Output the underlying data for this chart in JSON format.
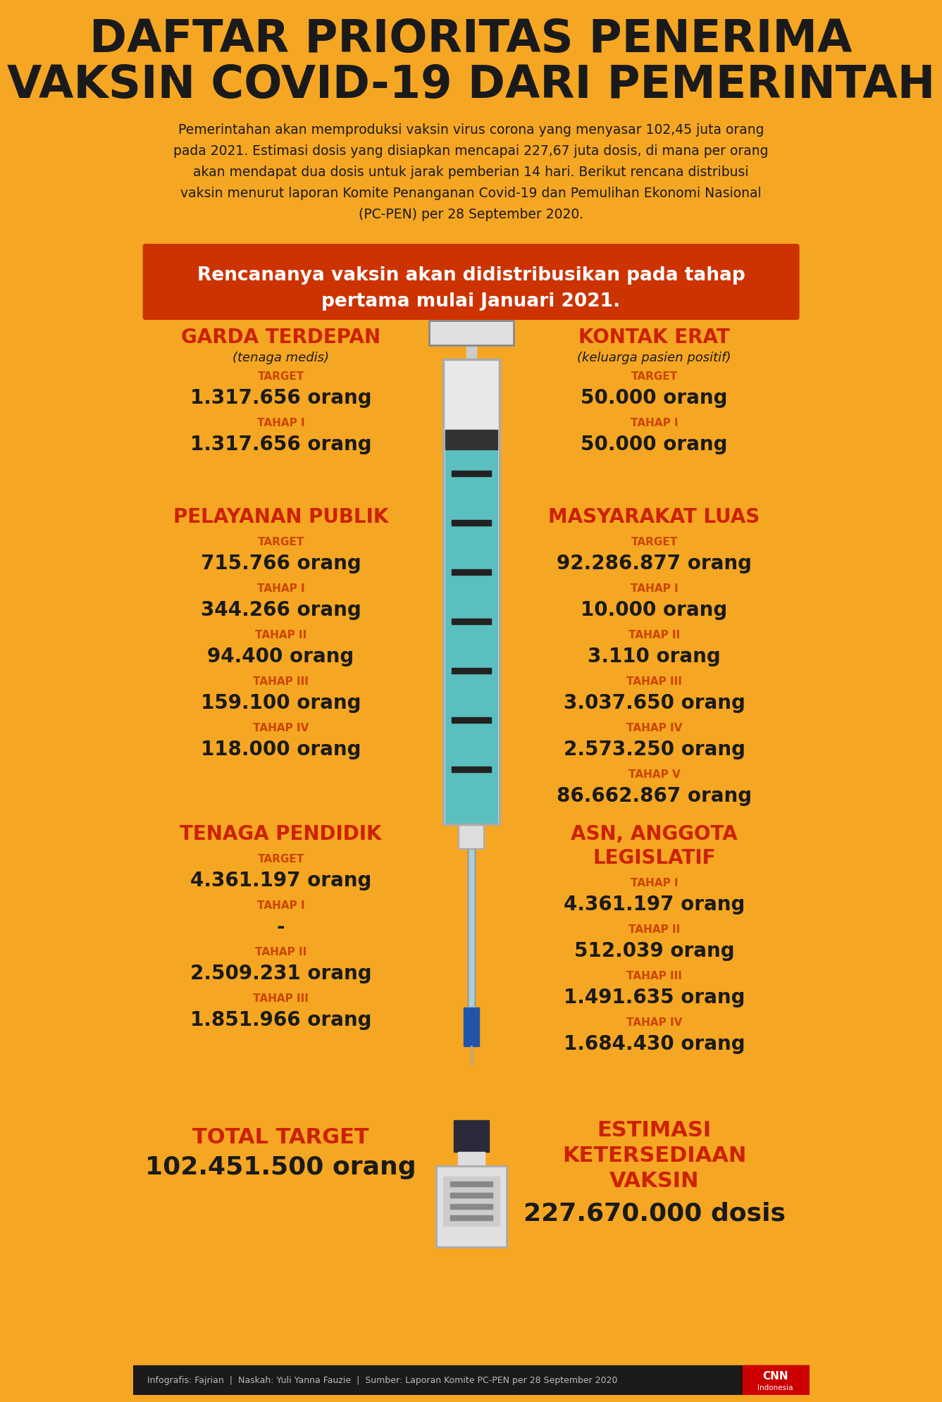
{
  "bg_color": "#F5A623",
  "title_line1": "DAFTAR PRIORITAS PENERIMA",
  "title_line2": "VAKSIN COVID-19 DARI PEMERINTAH",
  "title_color": "#1a1a1a",
  "subtitle_lines": [
    "Pemerintahan akan memproduksi vaksin virus corona yang menyasar 102,45 juta orang",
    "pada 2021. Estimasi dosis yang disiapkan mencapai 227,67 juta dosis, di mana per orang",
    "akan mendapat dua dosis untuk jarak pemberian 14 hari. Berikut rencana distribusi",
    "vaksin menurut laporan Komite Penanganan Covid-19 dan Pemulihan Ekonomi Nasional",
    "(PC-PEN) per 28 September 2020."
  ],
  "subtitle_color": "#1a1a1a",
  "banner_line1": "Rencananya vaksin akan didistribusikan pada tahap",
  "banner_line2": "pertama mulai Januari 2021.",
  "banner_bg": "#CC3300",
  "banner_text_color": "#FFFFFF",
  "red_color": "#CC2200",
  "dark_color": "#1a1a1a",
  "tahap_color": "#CC4400",
  "footer_note": "Infografis: Fajrian  |  Naskah: Yuli Yanna Fauzie  |  Sumber: Laporan Komite PC-PEN per 28 September 2020"
}
